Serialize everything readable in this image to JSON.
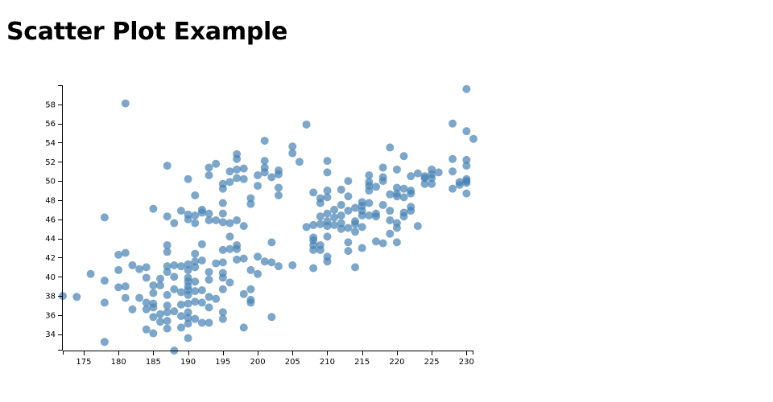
{
  "title": "Scatter Plot Example",
  "colors": {
    "point": "#4682b4"
  },
  "chart_data": {
    "type": "scatter",
    "title": "Scatter Plot Example",
    "xlabel": "",
    "ylabel": "",
    "xlim": [
      172,
      231
    ],
    "ylim": [
      32.3,
      60
    ],
    "xticks": [
      175,
      180,
      185,
      190,
      195,
      200,
      205,
      210,
      215,
      220,
      225,
      230
    ],
    "yticks": [
      34,
      36,
      38,
      40,
      42,
      44,
      46,
      48,
      50,
      52,
      54,
      56,
      58
    ],
    "grid": false,
    "legend": "none",
    "points": [
      [
        172,
        38.0
      ],
      [
        174,
        37.9
      ],
      [
        176,
        40.3
      ],
      [
        178,
        33.2
      ],
      [
        178,
        37.3
      ],
      [
        178,
        39.6
      ],
      [
        178,
        46.2
      ],
      [
        180,
        38.9
      ],
      [
        180,
        40.7
      ],
      [
        180,
        42.3
      ],
      [
        181,
        37.8
      ],
      [
        181,
        39.0
      ],
      [
        181,
        42.5
      ],
      [
        181,
        58.1
      ],
      [
        182,
        36.6
      ],
      [
        182,
        41.2
      ],
      [
        183,
        37.8
      ],
      [
        183,
        40.8
      ],
      [
        184,
        34.5
      ],
      [
        184,
        36.6
      ],
      [
        184,
        37.3
      ],
      [
        184,
        39.9
      ],
      [
        184,
        41.0
      ],
      [
        185,
        34.1
      ],
      [
        185,
        35.8
      ],
      [
        185,
        36.8
      ],
      [
        185,
        37.2
      ],
      [
        185,
        38.3
      ],
      [
        185,
        39.1
      ],
      [
        185,
        47.1
      ],
      [
        186,
        35.3
      ],
      [
        186,
        36.1
      ],
      [
        186,
        39.1
      ],
      [
        186,
        39.8
      ],
      [
        187,
        34.6
      ],
      [
        187,
        35.4
      ],
      [
        187,
        36.3
      ],
      [
        187,
        37.0
      ],
      [
        187,
        38.1
      ],
      [
        187,
        40.5
      ],
      [
        187,
        41.1
      ],
      [
        187,
        42.6
      ],
      [
        187,
        43.3
      ],
      [
        187,
        46.3
      ],
      [
        187,
        51.6
      ],
      [
        188,
        32.3
      ],
      [
        188,
        36.4
      ],
      [
        188,
        38.7
      ],
      [
        188,
        40.0
      ],
      [
        188,
        41.2
      ],
      [
        188,
        45.6
      ],
      [
        189,
        34.7
      ],
      [
        189,
        35.9
      ],
      [
        189,
        37.1
      ],
      [
        189,
        38.4
      ],
      [
        189,
        41.1
      ],
      [
        189,
        46.9
      ],
      [
        190,
        33.6
      ],
      [
        190,
        35.1
      ],
      [
        190,
        35.7
      ],
      [
        190,
        36.3
      ],
      [
        190,
        37.2
      ],
      [
        190,
        38.1
      ],
      [
        190,
        38.6
      ],
      [
        190,
        39.0
      ],
      [
        190,
        39.5
      ],
      [
        190,
        39.9
      ],
      [
        190,
        40.7
      ],
      [
        190,
        41.3
      ],
      [
        190,
        46.0
      ],
      [
        190,
        46.5
      ],
      [
        190,
        50.2
      ],
      [
        191,
        35.6
      ],
      [
        191,
        37.4
      ],
      [
        191,
        38.5
      ],
      [
        191,
        39.5
      ],
      [
        191,
        41.0
      ],
      [
        191,
        41.6
      ],
      [
        191,
        42.4
      ],
      [
        191,
        45.6
      ],
      [
        191,
        46.4
      ],
      [
        191,
        48.5
      ],
      [
        192,
        35.2
      ],
      [
        192,
        37.3
      ],
      [
        192,
        38.6
      ],
      [
        192,
        41.7
      ],
      [
        192,
        43.4
      ],
      [
        192,
        46.7
      ],
      [
        192,
        47.0
      ],
      [
        193,
        35.2
      ],
      [
        193,
        36.8
      ],
      [
        193,
        37.9
      ],
      [
        193,
        39.7
      ],
      [
        193,
        40.5
      ],
      [
        193,
        45.9
      ],
      [
        193,
        46.6
      ],
      [
        193,
        50.6
      ],
      [
        193,
        51.4
      ],
      [
        194,
        37.7
      ],
      [
        194,
        41.4
      ],
      [
        194,
        45.9
      ],
      [
        194,
        51.8
      ],
      [
        195,
        35.6
      ],
      [
        195,
        36.3
      ],
      [
        195,
        38.7
      ],
      [
        195,
        39.9
      ],
      [
        195,
        40.4
      ],
      [
        195,
        41.5
      ],
      [
        195,
        42.8
      ],
      [
        195,
        45.7
      ],
      [
        195,
        46.6
      ],
      [
        195,
        47.7
      ],
      [
        195,
        49.2
      ],
      [
        195,
        49.7
      ],
      [
        196,
        39.4
      ],
      [
        196,
        42.9
      ],
      [
        196,
        44.2
      ],
      [
        196,
        45.6
      ],
      [
        196,
        49.9
      ],
      [
        196,
        51.0
      ],
      [
        197,
        41.8
      ],
      [
        197,
        42.9
      ],
      [
        197,
        43.3
      ],
      [
        197,
        45.9
      ],
      [
        197,
        50.3
      ],
      [
        197,
        51.2
      ],
      [
        197,
        52.3
      ],
      [
        197,
        52.8
      ],
      [
        198,
        34.7
      ],
      [
        198,
        38.2
      ],
      [
        198,
        41.9
      ],
      [
        198,
        45.3
      ],
      [
        198,
        50.2
      ],
      [
        198,
        51.3
      ],
      [
        199,
        37.3
      ],
      [
        199,
        37.6
      ],
      [
        199,
        38.7
      ],
      [
        199,
        40.7
      ],
      [
        199,
        47.6
      ],
      [
        199,
        48.2
      ],
      [
        200,
        40.3
      ],
      [
        200,
        42.1
      ],
      [
        200,
        49.5
      ],
      [
        200,
        50.6
      ],
      [
        201,
        41.6
      ],
      [
        201,
        50.9
      ],
      [
        201,
        51.4
      ],
      [
        201,
        52.1
      ],
      [
        201,
        54.2
      ],
      [
        202,
        35.8
      ],
      [
        202,
        41.5
      ],
      [
        202,
        43.6
      ],
      [
        202,
        50.4
      ],
      [
        203,
        41.1
      ],
      [
        203,
        48.5
      ],
      [
        203,
        49.3
      ],
      [
        203,
        50.7
      ],
      [
        203,
        51.1
      ],
      [
        205,
        41.2
      ],
      [
        205,
        52.9
      ],
      [
        205,
        53.6
      ],
      [
        206,
        52.0
      ],
      [
        207,
        45.2
      ],
      [
        207,
        55.9
      ],
      [
        208,
        40.9
      ],
      [
        208,
        42.8
      ],
      [
        208,
        43.3
      ],
      [
        208,
        43.8
      ],
      [
        208,
        44.1
      ],
      [
        208,
        45.4
      ],
      [
        208,
        48.8
      ],
      [
        209,
        42.8
      ],
      [
        209,
        43.3
      ],
      [
        209,
        45.5
      ],
      [
        209,
        46.3
      ],
      [
        209,
        47.7
      ],
      [
        209,
        48.2
      ],
      [
        210,
        41.6
      ],
      [
        210,
        42.1
      ],
      [
        210,
        44.2
      ],
      [
        210,
        45.3
      ],
      [
        210,
        45.8
      ],
      [
        210,
        46.6
      ],
      [
        210,
        48.3
      ],
      [
        210,
        49.0
      ],
      [
        210,
        50.9
      ],
      [
        210,
        52.1
      ],
      [
        211,
        45.4
      ],
      [
        211,
        46.2
      ],
      [
        211,
        47.0
      ],
      [
        212,
        45.0
      ],
      [
        212,
        45.6
      ],
      [
        212,
        46.4
      ],
      [
        212,
        47.5
      ],
      [
        212,
        49.1
      ],
      [
        213,
        42.7
      ],
      [
        213,
        43.6
      ],
      [
        213,
        45.1
      ],
      [
        213,
        46.9
      ],
      [
        213,
        48.4
      ],
      [
        213,
        50.0
      ],
      [
        214,
        41.0
      ],
      [
        214,
        44.7
      ],
      [
        214,
        45.5
      ],
      [
        214,
        45.8
      ],
      [
        214,
        47.2
      ],
      [
        215,
        43.0
      ],
      [
        215,
        45.2
      ],
      [
        215,
        46.4
      ],
      [
        215,
        46.9
      ],
      [
        215,
        47.4
      ],
      [
        215,
        47.8
      ],
      [
        216,
        46.4
      ],
      [
        216,
        47.7
      ],
      [
        216,
        49.0
      ],
      [
        216,
        49.5
      ],
      [
        216,
        49.9
      ],
      [
        216,
        50.6
      ],
      [
        217,
        43.7
      ],
      [
        217,
        46.3
      ],
      [
        217,
        46.6
      ],
      [
        217,
        49.4
      ],
      [
        218,
        43.5
      ],
      [
        218,
        47.5
      ],
      [
        218,
        50.0
      ],
      [
        218,
        50.4
      ],
      [
        218,
        51.4
      ],
      [
        219,
        44.5
      ],
      [
        219,
        45.9
      ],
      [
        219,
        46.9
      ],
      [
        219,
        48.6
      ],
      [
        219,
        53.5
      ],
      [
        220,
        43.6
      ],
      [
        220,
        45.1
      ],
      [
        220,
        45.6
      ],
      [
        220,
        48.4
      ],
      [
        220,
        48.7
      ],
      [
        220,
        49.3
      ],
      [
        220,
        51.2
      ],
      [
        221,
        46.3
      ],
      [
        221,
        46.7
      ],
      [
        221,
        48.3
      ],
      [
        221,
        49.2
      ],
      [
        221,
        52.6
      ],
      [
        222,
        46.9
      ],
      [
        222,
        47.3
      ],
      [
        222,
        48.7
      ],
      [
        222,
        49.0
      ],
      [
        222,
        50.5
      ],
      [
        223,
        45.3
      ],
      [
        223,
        50.8
      ],
      [
        224,
        49.7
      ],
      [
        224,
        50.3
      ],
      [
        224,
        50.5
      ],
      [
        225,
        49.7
      ],
      [
        225,
        50.3
      ],
      [
        225,
        50.7
      ],
      [
        225,
        51.2
      ],
      [
        226,
        50.9
      ],
      [
        228,
        49.2
      ],
      [
        228,
        51.0
      ],
      [
        228,
        52.3
      ],
      [
        228,
        56.0
      ],
      [
        229,
        49.6
      ],
      [
        229,
        49.9
      ],
      [
        230,
        48.7
      ],
      [
        230,
        49.8
      ],
      [
        230,
        50.0
      ],
      [
        230,
        50.2
      ],
      [
        230,
        51.6
      ],
      [
        230,
        52.2
      ],
      [
        230,
        55.2
      ],
      [
        230,
        59.6
      ],
      [
        231,
        54.4
      ]
    ]
  }
}
